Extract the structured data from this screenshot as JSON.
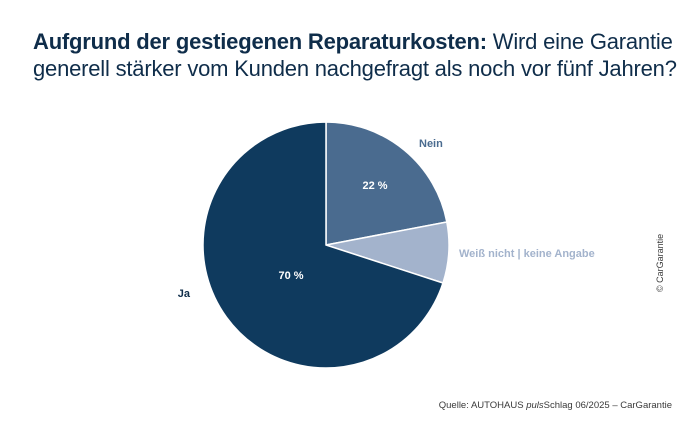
{
  "title_bold": "Aufgrund der gestiegenen Reparaturkosten:",
  "title_rest": " Wird eine Garantie generell stärker vom Kunden nachgefragt als noch vor fünf Jahren?",
  "copyright": "© CarGarantie",
  "source": {
    "prefix": "Quelle: AUTOHAUS ",
    "italic": "puls",
    "suffix": "Schlag 06/2025 – CarGarantie"
  },
  "chart_data": {
    "type": "pie",
    "title": "Aufgrund der gestiegenen Reparaturkosten: Wird eine Garantie generell stärker vom Kunden nachgefragt als noch vor fünf Jahren?",
    "slices": [
      {
        "label": "Nein",
        "value": 22,
        "value_label": "22 %",
        "color": "#4a6b8f",
        "label_color": "#4a6b8f"
      },
      {
        "label": "Weiß nicht | keine Angabe",
        "value": 8,
        "value_label": "",
        "color": "#a3b3cc",
        "label_color": "#a3b3cc"
      },
      {
        "label": "Ja",
        "value": 70,
        "value_label": "70 %",
        "color": "#0f3a5e",
        "label_color": "#0f2d4a"
      }
    ],
    "start": "12 o'clock",
    "direction": "clockwise"
  }
}
